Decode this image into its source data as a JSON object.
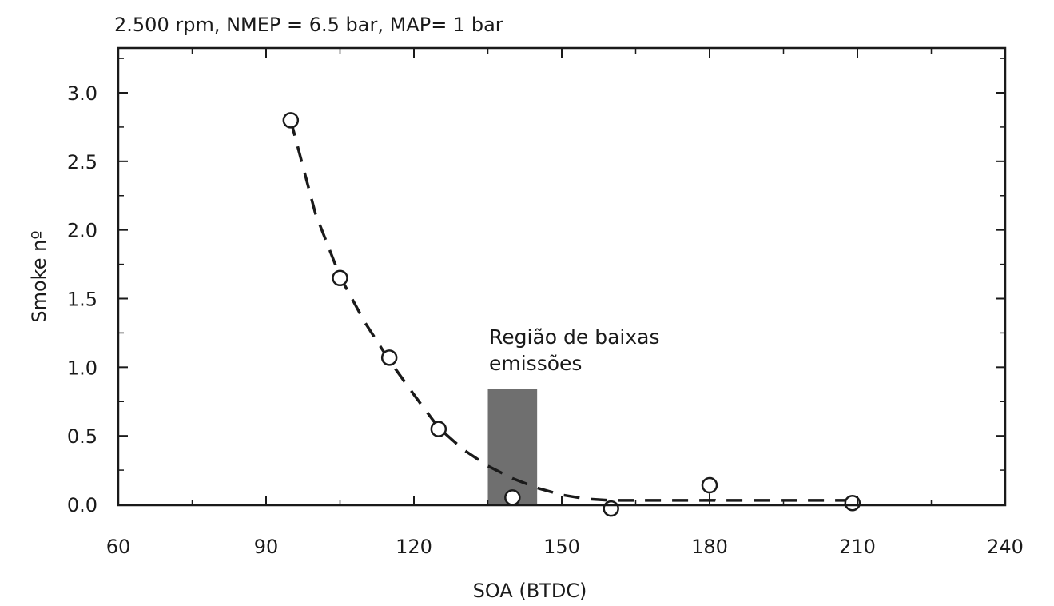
{
  "chart_data": {
    "type": "scatter",
    "title": "2.500 rpm, NMEP = 6.5 bar, MAP= 1 bar",
    "xlabel": "SOA (BTDC)",
    "ylabel": "Smoke nº",
    "xlim": [
      60,
      240
    ],
    "ylim": [
      0,
      3.3
    ],
    "xticks": [
      60,
      90,
      120,
      150,
      180,
      210,
      240
    ],
    "yticks": [
      0.0,
      0.5,
      1.0,
      1.5,
      2.0,
      2.5,
      3.0
    ],
    "ytick_labels": [
      "0.0",
      "0.5",
      "1.0",
      "1.5",
      "2.0",
      "2.5",
      "3.0"
    ],
    "series": [
      {
        "marker": "open-circle",
        "x": [
          95,
          105,
          115,
          125,
          140,
          160,
          180,
          209
        ],
        "y": [
          2.8,
          1.65,
          1.07,
          0.55,
          0.05,
          -0.03,
          0.14,
          0.01
        ]
      }
    ],
    "trend_line": {
      "style": "dashed",
      "x": [
        95,
        100,
        105,
        110,
        115,
        120,
        125,
        130,
        135,
        140,
        145,
        150,
        155,
        160,
        165,
        180,
        200,
        210
      ],
      "y": [
        2.8,
        2.12,
        1.66,
        1.33,
        1.05,
        0.8,
        0.56,
        0.4,
        0.28,
        0.19,
        0.12,
        0.07,
        0.04,
        0.03,
        0.03,
        0.03,
        0.03,
        0.03
      ]
    },
    "error_bar": {
      "x": 180,
      "y": 0.01
    },
    "shaded_region": {
      "x": [
        135,
        145
      ],
      "y": [
        0,
        0.84
      ]
    },
    "annotation": {
      "lines": [
        "Região de baixas",
        "emissões"
      ]
    },
    "colors": {
      "axis": "#1a1a1a",
      "marker": "#1a1a1a",
      "shade": "#6f6f6f"
    }
  }
}
